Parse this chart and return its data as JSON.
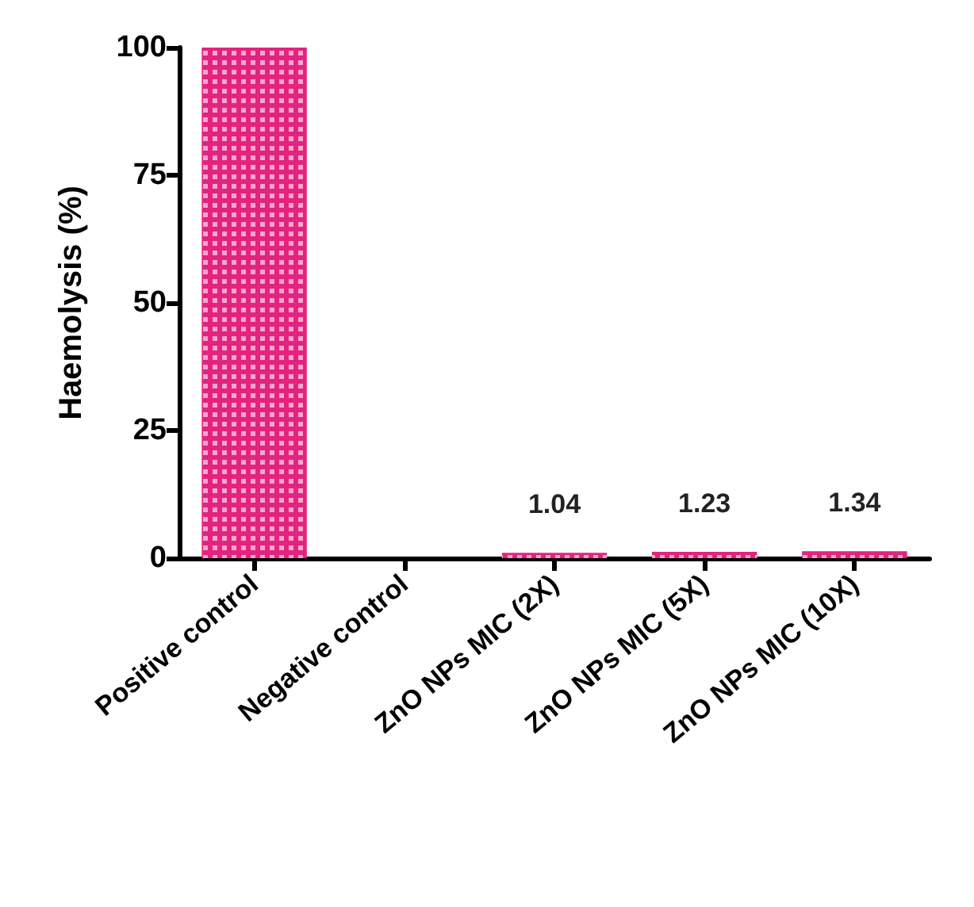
{
  "chart_data": {
    "type": "bar",
    "ylabel": "Haemolysis (%)",
    "categories": [
      "Positive control",
      "Negative control",
      "ZnO NPs MIC (2X)",
      "ZnO NPs MIC (5X)",
      "ZnO NPs MIC (10X)"
    ],
    "values": [
      100,
      0,
      1.04,
      1.23,
      1.34
    ],
    "value_labels": [
      null,
      null,
      "1.04",
      "1.23",
      "1.34"
    ],
    "color": "#e3237f",
    "ylim": [
      0,
      100
    ],
    "yticks": [
      0,
      25,
      50,
      75,
      100
    ],
    "grid": false
  }
}
